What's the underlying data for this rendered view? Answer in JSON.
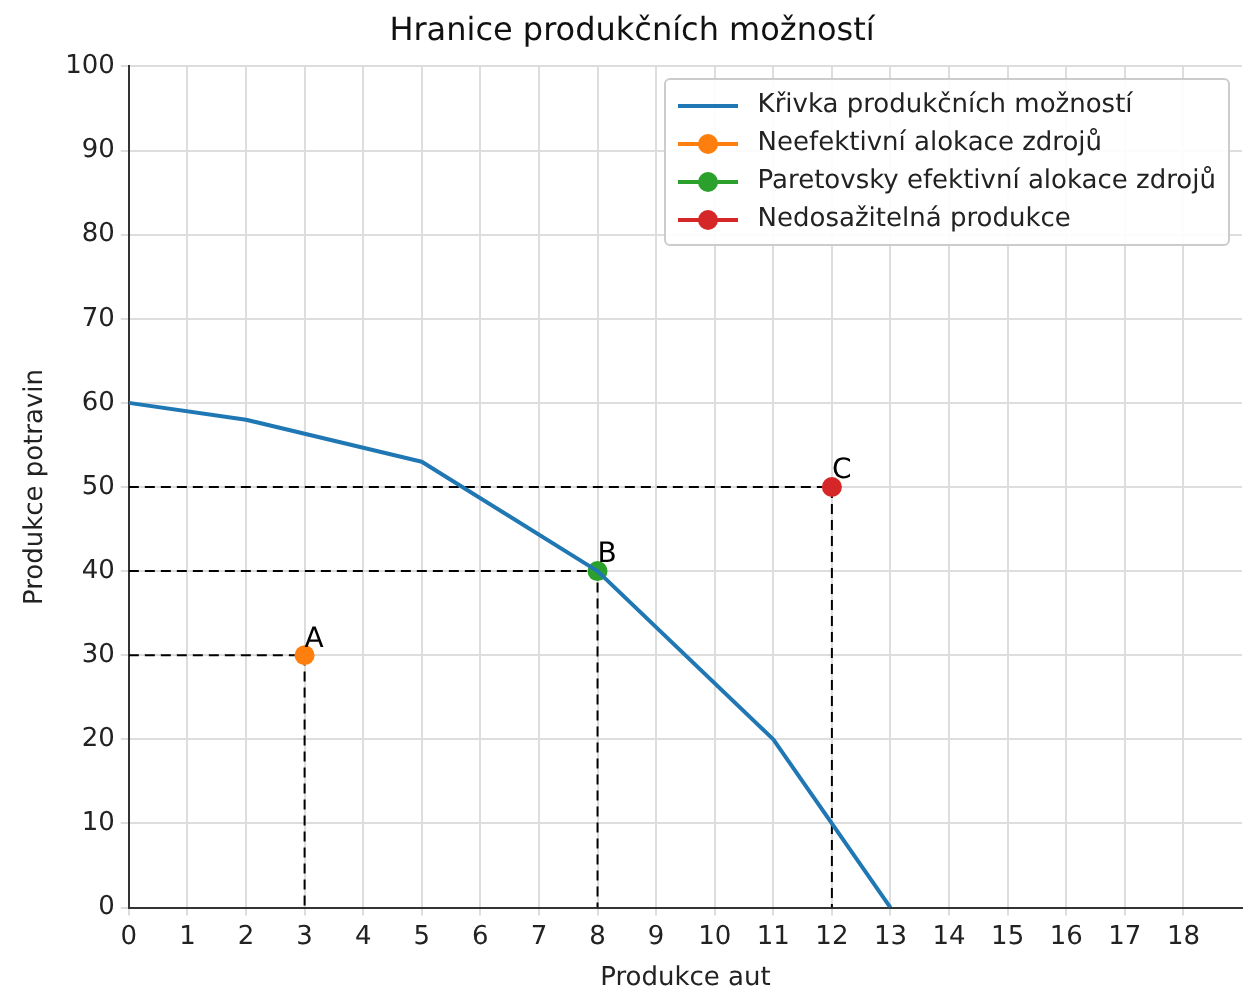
{
  "chart_data": {
    "type": "line",
    "title": "Hranice produkčních možností",
    "xlabel": "Produkce aut",
    "ylabel": "Produkce potravin",
    "xlim": [
      0,
      19
    ],
    "xticks": [
      0,
      1,
      2,
      3,
      4,
      5,
      6,
      7,
      8,
      9,
      10,
      11,
      12,
      13,
      14,
      15,
      16,
      17,
      18
    ],
    "ylim": [
      0,
      100
    ],
    "yticks": [
      0,
      10,
      20,
      30,
      40,
      50,
      60,
      70,
      80,
      90,
      100
    ],
    "grid": true,
    "legend": "top right",
    "series": [
      {
        "name": "Křivka produkčních možností",
        "color": "#1f77b4",
        "type": "line",
        "marker": "none",
        "x": [
          0,
          2,
          5,
          8,
          11,
          13
        ],
        "values": [
          60,
          58,
          53,
          40,
          20,
          0
        ]
      },
      {
        "name": "Neefektivní alokace zdrojů",
        "color": "#ff7f0e",
        "type": "line",
        "marker": "circle",
        "x": [
          3
        ],
        "values": [
          30
        ]
      },
      {
        "name": "Paretovsky efektivní alokace zdrojů",
        "color": "#2ca02c",
        "type": "line",
        "marker": "circle",
        "x": [
          8
        ],
        "values": [
          40
        ]
      },
      {
        "name": "Nedosažitelná produkce",
        "color": "#d62728",
        "type": "line",
        "marker": "circle",
        "x": [
          12
        ],
        "values": [
          50
        ]
      },
      {
        "color": "#000000",
        "type": "line",
        "marker": "none",
        "line_style": "dashed",
        "x": [
          0,
          3,
          3
        ],
        "values": [
          30,
          30,
          0
        ]
      },
      {
        "color": "#000000",
        "type": "line",
        "marker": "none",
        "line_style": "dashed",
        "x": [
          0,
          8,
          8
        ],
        "values": [
          40,
          40,
          0
        ]
      },
      {
        "color": "#000000",
        "type": "line",
        "marker": "none",
        "line_style": "dashed",
        "x": [
          0,
          12,
          12
        ],
        "values": [
          50,
          50,
          0
        ]
      }
    ],
    "annotations": [
      {
        "text": "A",
        "x": 3,
        "y": 30
      },
      {
        "text": "B",
        "x": 8,
        "y": 40
      },
      {
        "text": "C",
        "x": 12,
        "y": 50
      }
    ]
  }
}
